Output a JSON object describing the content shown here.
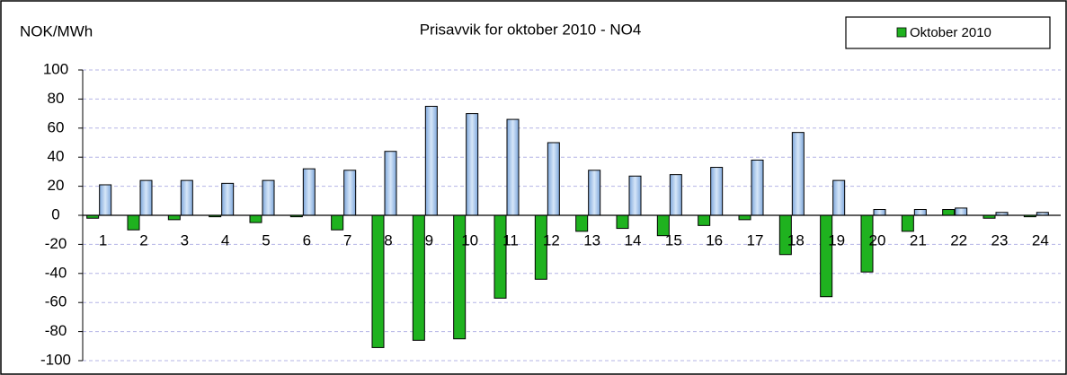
{
  "chart_data": {
    "type": "bar",
    "title": "Prisavvik for oktober 2010 - NO4",
    "y_label": "NOK/MWh",
    "categories": [
      "1",
      "2",
      "3",
      "4",
      "5",
      "6",
      "7",
      "8",
      "9",
      "10",
      "11",
      "12",
      "13",
      "14",
      "15",
      "16",
      "17",
      "18",
      "19",
      "20",
      "21",
      "22",
      "23",
      "24"
    ],
    "series": [
      {
        "name": "Oktober 2010",
        "color": "#1fb21f",
        "values": [
          -2,
          -10,
          -3,
          -1,
          -5,
          -1,
          -10,
          -91,
          -86,
          -85,
          -57,
          -44,
          -11,
          -9,
          -14,
          -7,
          -3,
          -27,
          -56,
          -39,
          -11,
          4,
          -2,
          -1
        ]
      },
      {
        "color": "#a9c8ec",
        "values": [
          21,
          24,
          24,
          22,
          24,
          32,
          31,
          44,
          75,
          70,
          66,
          50,
          31,
          27,
          28,
          33,
          38,
          57,
          24,
          4,
          4,
          5,
          2,
          2
        ]
      }
    ],
    "ylim": [
      -100,
      100
    ],
    "yticks": [
      -100,
      -80,
      -60,
      -40,
      -20,
      0,
      20,
      40,
      60,
      80,
      100
    ],
    "grid": true,
    "legend": "top-right"
  }
}
